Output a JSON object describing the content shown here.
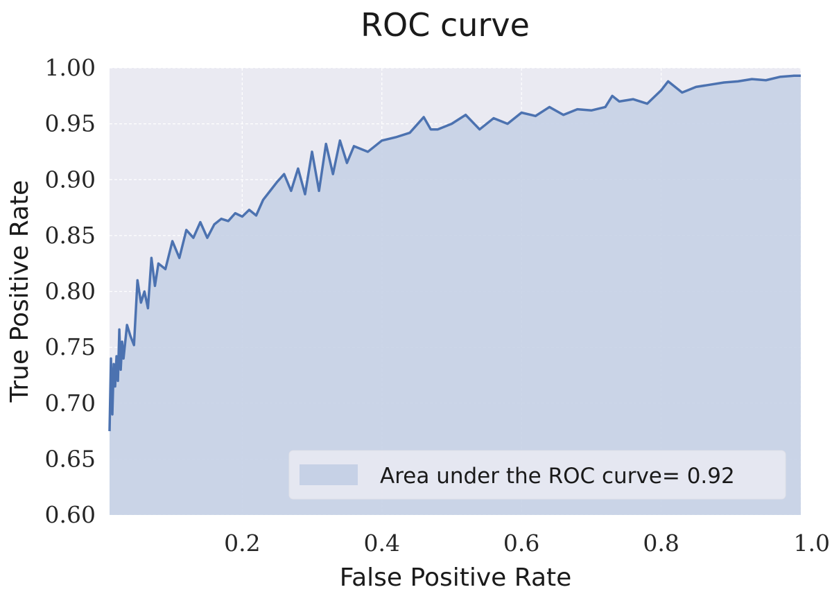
{
  "chart_data": {
    "type": "area",
    "title": "ROC curve",
    "xlabel": "False Positive Rate",
    "ylabel": "True Positive Rate",
    "xlim": [
      0.01,
      1.0
    ],
    "ylim": [
      0.6,
      1.0
    ],
    "xticks": [
      0.2,
      0.4,
      0.6,
      0.8,
      1.0
    ],
    "xtick_labels": [
      "0.2",
      "0.4",
      "0.6",
      "0.8",
      "1.0"
    ],
    "yticks": [
      0.6,
      0.65,
      0.7,
      0.75,
      0.8,
      0.85,
      0.9,
      0.95,
      1.0
    ],
    "ytick_labels": [
      "0.60",
      "0.65",
      "0.70",
      "0.75",
      "0.80",
      "0.85",
      "0.90",
      "0.95",
      "1.00"
    ],
    "grid": true,
    "legend_position": "lower-right",
    "colors": {
      "line": "#4c72b0",
      "fill": "#c6d1e6",
      "background": "#eaeaf2",
      "grid": "#ffffff"
    },
    "series": [
      {
        "name": "Area under the ROC curve= 0.92",
        "x": [
          0.01,
          0.012,
          0.014,
          0.016,
          0.018,
          0.02,
          0.022,
          0.024,
          0.026,
          0.028,
          0.03,
          0.035,
          0.04,
          0.045,
          0.05,
          0.055,
          0.06,
          0.065,
          0.07,
          0.075,
          0.08,
          0.09,
          0.1,
          0.11,
          0.12,
          0.13,
          0.14,
          0.15,
          0.16,
          0.17,
          0.18,
          0.19,
          0.2,
          0.21,
          0.22,
          0.23,
          0.24,
          0.25,
          0.26,
          0.27,
          0.28,
          0.29,
          0.3,
          0.31,
          0.32,
          0.33,
          0.34,
          0.35,
          0.36,
          0.38,
          0.4,
          0.42,
          0.44,
          0.46,
          0.47,
          0.48,
          0.5,
          0.52,
          0.54,
          0.56,
          0.58,
          0.6,
          0.62,
          0.64,
          0.66,
          0.68,
          0.7,
          0.72,
          0.73,
          0.74,
          0.76,
          0.78,
          0.8,
          0.81,
          0.83,
          0.85,
          0.87,
          0.89,
          0.91,
          0.93,
          0.95,
          0.97,
          0.99,
          1.0
        ],
        "y": [
          0.675,
          0.74,
          0.69,
          0.735,
          0.715,
          0.742,
          0.72,
          0.766,
          0.73,
          0.755,
          0.74,
          0.77,
          0.76,
          0.752,
          0.81,
          0.79,
          0.8,
          0.785,
          0.83,
          0.805,
          0.825,
          0.82,
          0.845,
          0.83,
          0.855,
          0.848,
          0.862,
          0.848,
          0.86,
          0.865,
          0.863,
          0.87,
          0.867,
          0.873,
          0.868,
          0.882,
          0.89,
          0.898,
          0.905,
          0.89,
          0.91,
          0.887,
          0.925,
          0.89,
          0.932,
          0.905,
          0.935,
          0.915,
          0.93,
          0.925,
          0.935,
          0.938,
          0.942,
          0.956,
          0.945,
          0.945,
          0.95,
          0.958,
          0.945,
          0.955,
          0.95,
          0.96,
          0.957,
          0.965,
          0.958,
          0.963,
          0.962,
          0.965,
          0.975,
          0.97,
          0.972,
          0.968,
          0.98,
          0.988,
          0.978,
          0.983,
          0.985,
          0.987,
          0.988,
          0.99,
          0.989,
          0.992,
          0.993,
          0.993
        ]
      }
    ]
  }
}
